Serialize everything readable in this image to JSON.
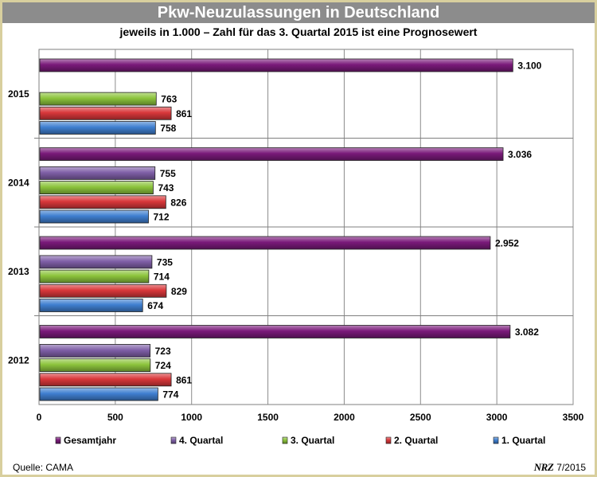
{
  "header": {
    "title": "Pkw-Neuzulassungen in Deutschland",
    "subtitle": "jeweils in 1.000 – Zahl für das 3. Quartal 2015 ist eine Prognosewert"
  },
  "footer": {
    "source": "Quelle: CAMA",
    "logo": "NRZ",
    "date": "7/2015"
  },
  "chart_data": {
    "type": "bar",
    "orientation": "horizontal",
    "title": "Pkw-Neuzulassungen in Deutschland",
    "subtitle": "jeweils in 1.000 – Zahl für das 3. Quartal 2015 ist eine Prognosewert",
    "categories": [
      "2015",
      "2014",
      "2013",
      "2012"
    ],
    "series": [
      {
        "name": "Gesamtjahr",
        "values": [
          3100,
          3036,
          2952,
          3082
        ],
        "labels": [
          "3.100",
          "3.036",
          "2.952",
          "3.082"
        ],
        "color": "#7a1a7a"
      },
      {
        "name": "4. Quartal",
        "values": [
          null,
          755,
          735,
          723
        ],
        "labels": [
          "",
          "755",
          "735",
          "723"
        ],
        "color": "#8060a8"
      },
      {
        "name": "3. Quartal",
        "values": [
          763,
          743,
          714,
          724
        ],
        "labels": [
          "763",
          "743",
          "714",
          "724"
        ],
        "color": "#8cc43c"
      },
      {
        "name": "2. Quartal",
        "values": [
          861,
          826,
          829,
          861
        ],
        "labels": [
          "861",
          "826",
          "829",
          "861"
        ],
        "color": "#d9373a"
      },
      {
        "name": "1. Quartal",
        "values": [
          758,
          712,
          674,
          774
        ],
        "labels": [
          "758",
          "712",
          "674",
          "774"
        ],
        "color": "#3f7fd0"
      }
    ],
    "xlim": [
      0,
      3500
    ],
    "xticks": [
      0,
      500,
      1000,
      1500,
      2000,
      2500,
      3000,
      3500
    ],
    "xtick_labels": [
      "0",
      "500",
      "1000",
      "1500",
      "2000",
      "2500",
      "3000",
      "3500"
    ],
    "grid": "vertical",
    "legend": "bottom"
  }
}
